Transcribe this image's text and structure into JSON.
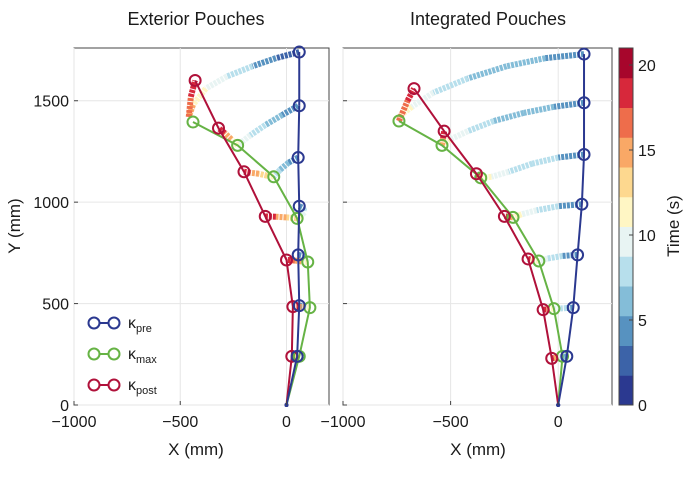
{
  "colors": {
    "pre": "#2b3990",
    "max": "#66b345",
    "post": "#b0113a",
    "grid": "#e6e6e6",
    "axis": "#444444",
    "colormap": [
      "#2b3990",
      "#3c63a8",
      "#5792c0",
      "#84bdd8",
      "#b7dfec",
      "#e8f4f3",
      "#fff6c4",
      "#fdd88f",
      "#f9a866",
      "#ee6d4b",
      "#d7283b",
      "#a7062c"
    ]
  },
  "legend": [
    {
      "key": "pre",
      "symbol": "κ",
      "sub": "pre"
    },
    {
      "key": "max",
      "symbol": "κ",
      "sub": "max"
    },
    {
      "key": "post",
      "symbol": "κ",
      "sub": "post"
    }
  ],
  "colorbar": {
    "label": "Time (s)",
    "ticks": [
      "0",
      "5",
      "10",
      "15",
      "20"
    ],
    "tick_values": [
      0,
      5,
      10,
      15,
      20
    ],
    "range": [
      0,
      21
    ]
  },
  "chart_data": [
    {
      "type": "line",
      "title": "Exterior Pouches",
      "xlabel": "X (mm)",
      "ylabel": "Y (mm)",
      "xlim": [
        -1000,
        200
      ],
      "ylim": [
        0,
        1760
      ],
      "xticks": [
        -1000,
        -500,
        0
      ],
      "xtick_labels": [
        "−1000",
        "−500",
        "0"
      ],
      "yticks": [
        0,
        500,
        1000,
        1500
      ],
      "ytick_labels": [
        "0",
        "500",
        "1000",
        "1500"
      ],
      "grid": true,
      "series": [
        {
          "name": "κpre",
          "key": "pre",
          "x": [
            0,
            50,
            60,
            55,
            60,
            55,
            60
          ],
          "y": [
            0,
            240,
            490,
            740,
            980,
            1220,
            1475
          ]
        },
        {
          "name": "κmax",
          "key": "max",
          "x": [
            0,
            60,
            110,
            100,
            50,
            -60,
            -230,
            -440
          ],
          "y": [
            0,
            240,
            480,
            705,
            920,
            1125,
            1280,
            1395
          ]
        },
        {
          "name": "κpost",
          "key": "post",
          "x": [
            0,
            25,
            30,
            0,
            -100,
            -200,
            -320,
            -430
          ],
          "y": [
            0,
            240,
            485,
            715,
            930,
            1150,
            1365,
            1600
          ]
        }
      ],
      "pre_top": {
        "x": [
          60,
          60
        ],
        "y": [
          1475,
          1740
        ]
      },
      "trajectories": [
        {
          "x": [
            50,
            55,
            60,
            45,
            40,
            35,
            30,
            25
          ],
          "y": [
            240,
            240,
            240,
            240,
            240,
            240,
            240,
            240
          ],
          "t": [
            3,
            6,
            9,
            12,
            14,
            16,
            18,
            20
          ]
        },
        {
          "x": [
            60,
            80,
            100,
            110,
            90,
            60,
            40,
            30
          ],
          "y": [
            490,
            488,
            485,
            480,
            482,
            485,
            485,
            485
          ],
          "t": [
            3,
            6,
            9,
            11,
            13,
            15,
            17,
            20
          ]
        },
        {
          "x": [
            55,
            75,
            95,
            100,
            70,
            40,
            20,
            0
          ],
          "y": [
            740,
            735,
            720,
            705,
            708,
            712,
            714,
            715
          ],
          "t": [
            3,
            6,
            9,
            11,
            13,
            15,
            17,
            20
          ]
        },
        {
          "x": [
            60,
            80,
            85,
            70,
            50,
            0,
            -50,
            -100
          ],
          "y": [
            980,
            970,
            950,
            935,
            920,
            925,
            928,
            930
          ],
          "t": [
            3,
            6,
            8,
            10,
            12,
            14,
            17,
            20
          ]
        },
        {
          "x": [
            55,
            10,
            -30,
            -60,
            -90,
            -130,
            -170,
            -200
          ],
          "y": [
            1220,
            1195,
            1160,
            1125,
            1130,
            1140,
            1145,
            1150
          ],
          "t": [
            3,
            5,
            7,
            10,
            12,
            14,
            17,
            20
          ]
        },
        {
          "x": [
            55,
            -20,
            -100,
            -170,
            -230,
            -260,
            -290,
            -320
          ],
          "y": [
            1475,
            1430,
            1380,
            1330,
            1280,
            1310,
            1340,
            1365
          ],
          "t": [
            3,
            5,
            7,
            9,
            11,
            13,
            16,
            20
          ]
        },
        {
          "x": [
            60,
            -50,
            -160,
            -280,
            -380,
            -440,
            -460,
            -450,
            -430
          ],
          "y": [
            1740,
            1710,
            1670,
            1620,
            1560,
            1480,
            1420,
            1520,
            1600
          ],
          "t": [
            2,
            4,
            6,
            8,
            11,
            13,
            15,
            17,
            20
          ]
        }
      ]
    },
    {
      "type": "line",
      "title": "Integrated Pouches",
      "xlabel": "X (mm)",
      "ylabel": "",
      "xlim": [
        -1000,
        250
      ],
      "ylim": [
        0,
        1760
      ],
      "xticks": [
        -1000,
        -500,
        0
      ],
      "xtick_labels": [
        "−1000",
        "−500",
        "0"
      ],
      "yticks": [
        0,
        500,
        1000,
        1500
      ],
      "ytick_labels": [],
      "grid": true,
      "series": [
        {
          "name": "κpre",
          "key": "pre",
          "x": [
            0,
            40,
            70,
            90,
            110,
            120,
            120,
            120
          ],
          "y": [
            0,
            240,
            480,
            740,
            990,
            1235,
            1490,
            1730
          ]
        },
        {
          "name": "κmax",
          "key": "max",
          "x": [
            0,
            20,
            -20,
            -90,
            -210,
            -360,
            -540,
            -740
          ],
          "y": [
            0,
            240,
            475,
            710,
            925,
            1120,
            1280,
            1400
          ]
        },
        {
          "name": "κpost",
          "key": "post",
          "x": [
            0,
            -30,
            -70,
            -140,
            -250,
            -380,
            -530,
            -670
          ],
          "y": [
            0,
            230,
            470,
            720,
            930,
            1140,
            1350,
            1560
          ]
        }
      ],
      "trajectories": [
        {
          "x": [
            40,
            30,
            20,
            10,
            0,
            -10,
            -20,
            -30
          ],
          "y": [
            240,
            238,
            236,
            235,
            234,
            233,
            232,
            230
          ],
          "t": [
            3,
            5,
            7,
            9,
            11,
            14,
            17,
            20
          ]
        },
        {
          "x": [
            70,
            40,
            10,
            -20,
            -40,
            -55,
            -70
          ],
          "y": [
            480,
            478,
            476,
            475,
            473,
            471,
            470
          ],
          "t": [
            4,
            6,
            8,
            10,
            13,
            16,
            20
          ]
        },
        {
          "x": [
            90,
            20,
            -50,
            -90,
            -110,
            -130,
            -140
          ],
          "y": [
            740,
            735,
            722,
            710,
            714,
            718,
            720
          ],
          "t": [
            4,
            6,
            8,
            10,
            13,
            16,
            20
          ]
        },
        {
          "x": [
            110,
            0,
            -100,
            -170,
            -210,
            -230,
            -250
          ],
          "y": [
            990,
            980,
            960,
            940,
            925,
            928,
            930
          ],
          "t": [
            4,
            6,
            8,
            10,
            12,
            16,
            20
          ]
        },
        {
          "x": [
            120,
            0,
            -120,
            -230,
            -310,
            -360,
            -370,
            -380
          ],
          "y": [
            1235,
            1220,
            1190,
            1150,
            1125,
            1120,
            1130,
            1140
          ],
          "t": [
            4,
            6,
            8,
            9,
            11,
            12,
            16,
            20
          ]
        },
        {
          "x": [
            120,
            -20,
            -160,
            -300,
            -420,
            -500,
            -540,
            -535,
            -530
          ],
          "y": [
            1490,
            1470,
            1440,
            1400,
            1350,
            1310,
            1280,
            1315,
            1350
          ],
          "t": [
            4,
            5,
            6,
            7,
            9,
            11,
            13,
            16,
            20
          ]
        },
        {
          "x": [
            120,
            -60,
            -240,
            -420,
            -580,
            -680,
            -730,
            -740,
            -700,
            -670
          ],
          "y": [
            1730,
            1710,
            1670,
            1610,
            1540,
            1470,
            1430,
            1400,
            1500,
            1560
          ],
          "t": [
            3,
            5,
            6,
            7,
            9,
            11,
            13,
            15,
            18,
            20
          ]
        }
      ]
    }
  ]
}
